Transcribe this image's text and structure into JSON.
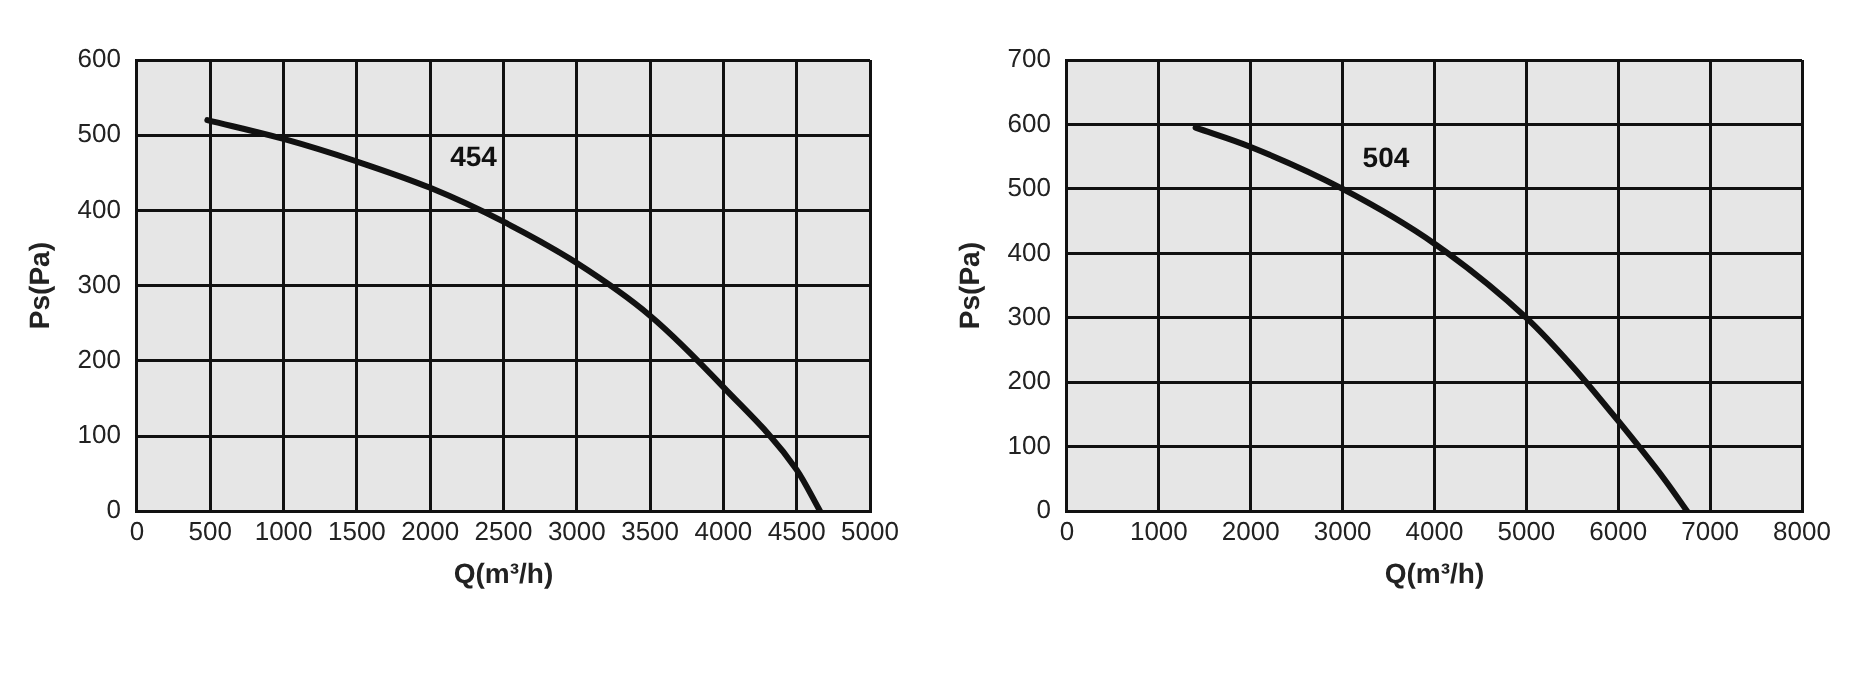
{
  "chart_data": [
    {
      "type": "line",
      "xlabel": "Q(m³/h)",
      "ylabel": "Ps(Pa)",
      "xlim": [
        0,
        5000
      ],
      "xticks": [
        0,
        500,
        1000,
        1500,
        2000,
        2500,
        3000,
        3500,
        4000,
        4500,
        5000
      ],
      "ylim": [
        0,
        600
      ],
      "yticks": [
        0,
        100,
        200,
        300,
        400,
        500,
        600
      ],
      "grid": true,
      "legend": false,
      "marker": "none",
      "line_style": "solid",
      "series": [
        {
          "name": "454",
          "color": "#111111",
          "x": [
            480,
            1000,
            1500,
            2000,
            2500,
            3000,
            3500,
            4000,
            4500,
            4660
          ],
          "values": [
            520,
            495,
            465,
            430,
            385,
            330,
            260,
            165,
            55,
            0
          ]
        }
      ]
    },
    {
      "type": "line",
      "xlabel": "Q(m³/h)",
      "ylabel": "Ps(Pa)",
      "xlim": [
        0,
        8000
      ],
      "xticks": [
        0,
        1000,
        2000,
        3000,
        4000,
        5000,
        6000,
        7000,
        8000
      ],
      "ylim": [
        0,
        700
      ],
      "yticks": [
        0,
        100,
        200,
        300,
        400,
        500,
        600,
        700
      ],
      "grid": true,
      "legend": false,
      "marker": "none",
      "line_style": "solid",
      "series": [
        {
          "name": "504",
          "color": "#111111",
          "x": [
            1400,
            2000,
            3000,
            4000,
            5000,
            5500,
            6000,
            6500,
            6750
          ],
          "values": [
            595,
            565,
            500,
            415,
            300,
            225,
            140,
            50,
            0
          ]
        }
      ]
    }
  ]
}
